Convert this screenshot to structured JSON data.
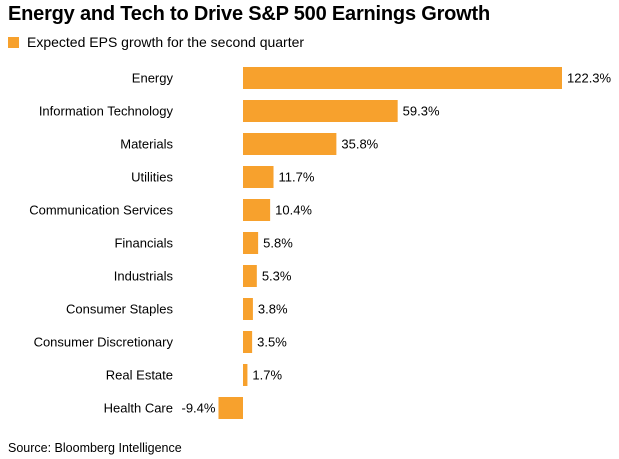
{
  "title": "Energy and Tech to Drive S&P 500 Earnings Growth",
  "source": "Source: Bloomberg Intelligence",
  "colors": {
    "bar": "#F7A12D",
    "text": "#000000",
    "background": "#FFFFFF"
  },
  "chart_data": {
    "type": "bar",
    "orientation": "horizontal",
    "title": "Energy and Tech to Drive S&P 500 Earnings Growth",
    "grid": false,
    "legend": {
      "position": "top-left"
    },
    "xlim": [
      -9.4,
      122.3
    ],
    "categories": [
      "Energy",
      "Information Technology",
      "Materials",
      "Utilities",
      "Communication Services",
      "Financials",
      "Industrials",
      "Consumer Staples",
      "Consumer Discretionary",
      "Real Estate",
      "Health Care"
    ],
    "series": [
      {
        "name": "Expected EPS growth for the second quarter",
        "values": [
          122.3,
          59.3,
          35.8,
          11.7,
          10.4,
          5.8,
          5.3,
          3.8,
          3.5,
          1.7,
          -9.4
        ],
        "labels": [
          "122.3%",
          "59.3%",
          "35.8%",
          "11.7%",
          "10.4%",
          "5.8%",
          "5.3%",
          "3.8%",
          "3.5%",
          "1.7%",
          "-9.4%"
        ]
      }
    ]
  }
}
